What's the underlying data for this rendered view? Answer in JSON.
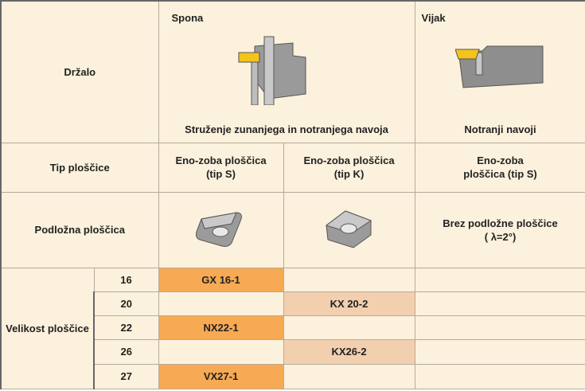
{
  "header": {
    "holder_label": "Držalo",
    "columns": [
      {
        "title": "Spona",
        "caption": "Struženje zunanjega in notranjega navoja"
      },
      {
        "title": "Vijak",
        "caption": "Notranji navoji"
      }
    ]
  },
  "insert_type": {
    "label": "Tip ploščice",
    "values": [
      "Eno-zoba ploščica (tip S)",
      "Eno-zoba ploščica (tip K)",
      "Eno-zoba ploščica (tip S)"
    ]
  },
  "shim": {
    "label": "Podložna ploščica",
    "note": [
      "Brez podložne ploščice",
      "( λ=2°)"
    ]
  },
  "sizes": {
    "label": "Velikost ploščice",
    "rows": [
      {
        "size": "16",
        "tip_s": "GX 16-1"
      },
      {
        "size": "20",
        "tip_k": "KX 20-2"
      },
      {
        "size": "22",
        "tip_s": "NX22-1"
      },
      {
        "size": "26",
        "tip_k": "KX26-2"
      },
      {
        "size": "27",
        "tip_s": "VX27-1"
      }
    ]
  }
}
